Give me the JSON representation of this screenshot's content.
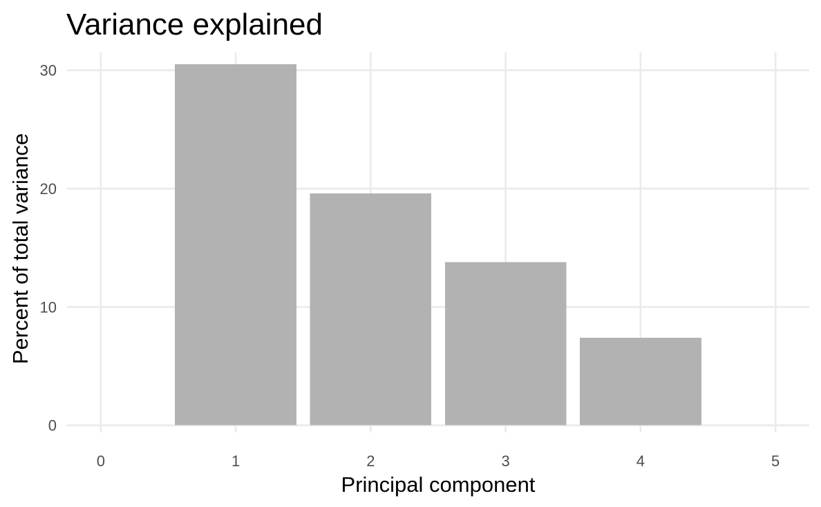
{
  "chart_data": {
    "type": "bar",
    "title": "Variance explained",
    "xlabel": "Principal component",
    "ylabel": "Percent of total variance",
    "x": [
      1,
      2,
      3,
      4
    ],
    "values": [
      30.5,
      19.6,
      13.8,
      7.4
    ],
    "xlim": [
      -0.25,
      5.25
    ],
    "ylim": [
      -0.6,
      31.5
    ],
    "xticks": [
      "0",
      "1",
      "2",
      "3",
      "4",
      "5"
    ],
    "yticks": [
      "0",
      "10",
      "20",
      "30"
    ],
    "grid": true,
    "legend": "none",
    "bar_color": "#b2b2b2",
    "grid_color": "#ebebeb"
  }
}
